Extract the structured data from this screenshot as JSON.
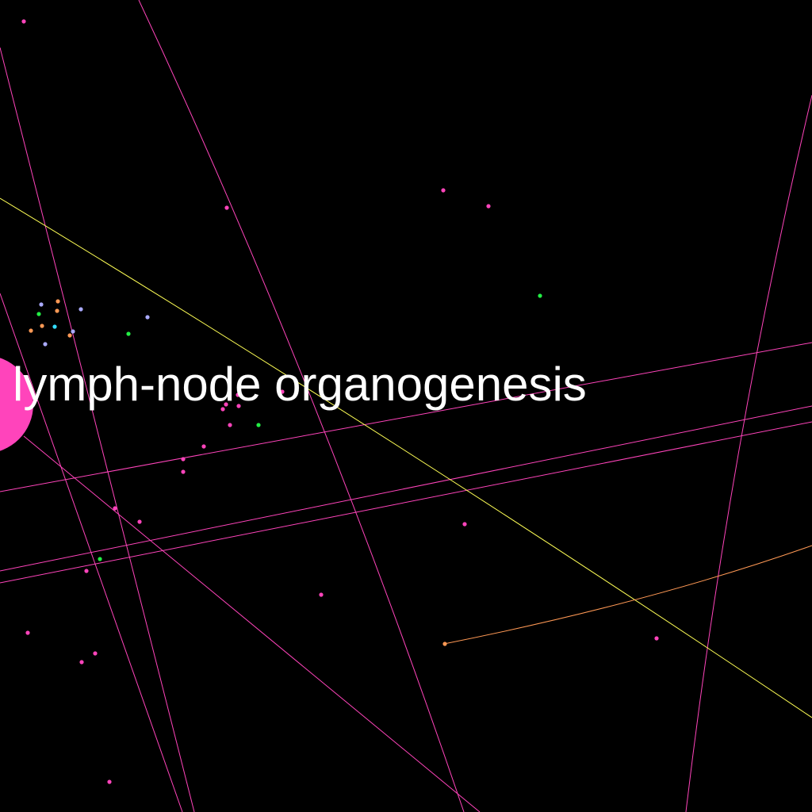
{
  "focus_node": {
    "label": "lymph-node organogenesis",
    "color": "#ff44bb"
  },
  "palette": {
    "background": "#000000",
    "edge_default": "#ff44bb",
    "edge_yellow": "#ffff55",
    "edge_orange": "#ff9955",
    "node_pink": "#ff44bb",
    "node_lavender": "#aaaaff",
    "node_orange": "#ff9955",
    "node_green": "#22ee44",
    "node_cyan": "#33ddff",
    "label": "#ffffff"
  }
}
